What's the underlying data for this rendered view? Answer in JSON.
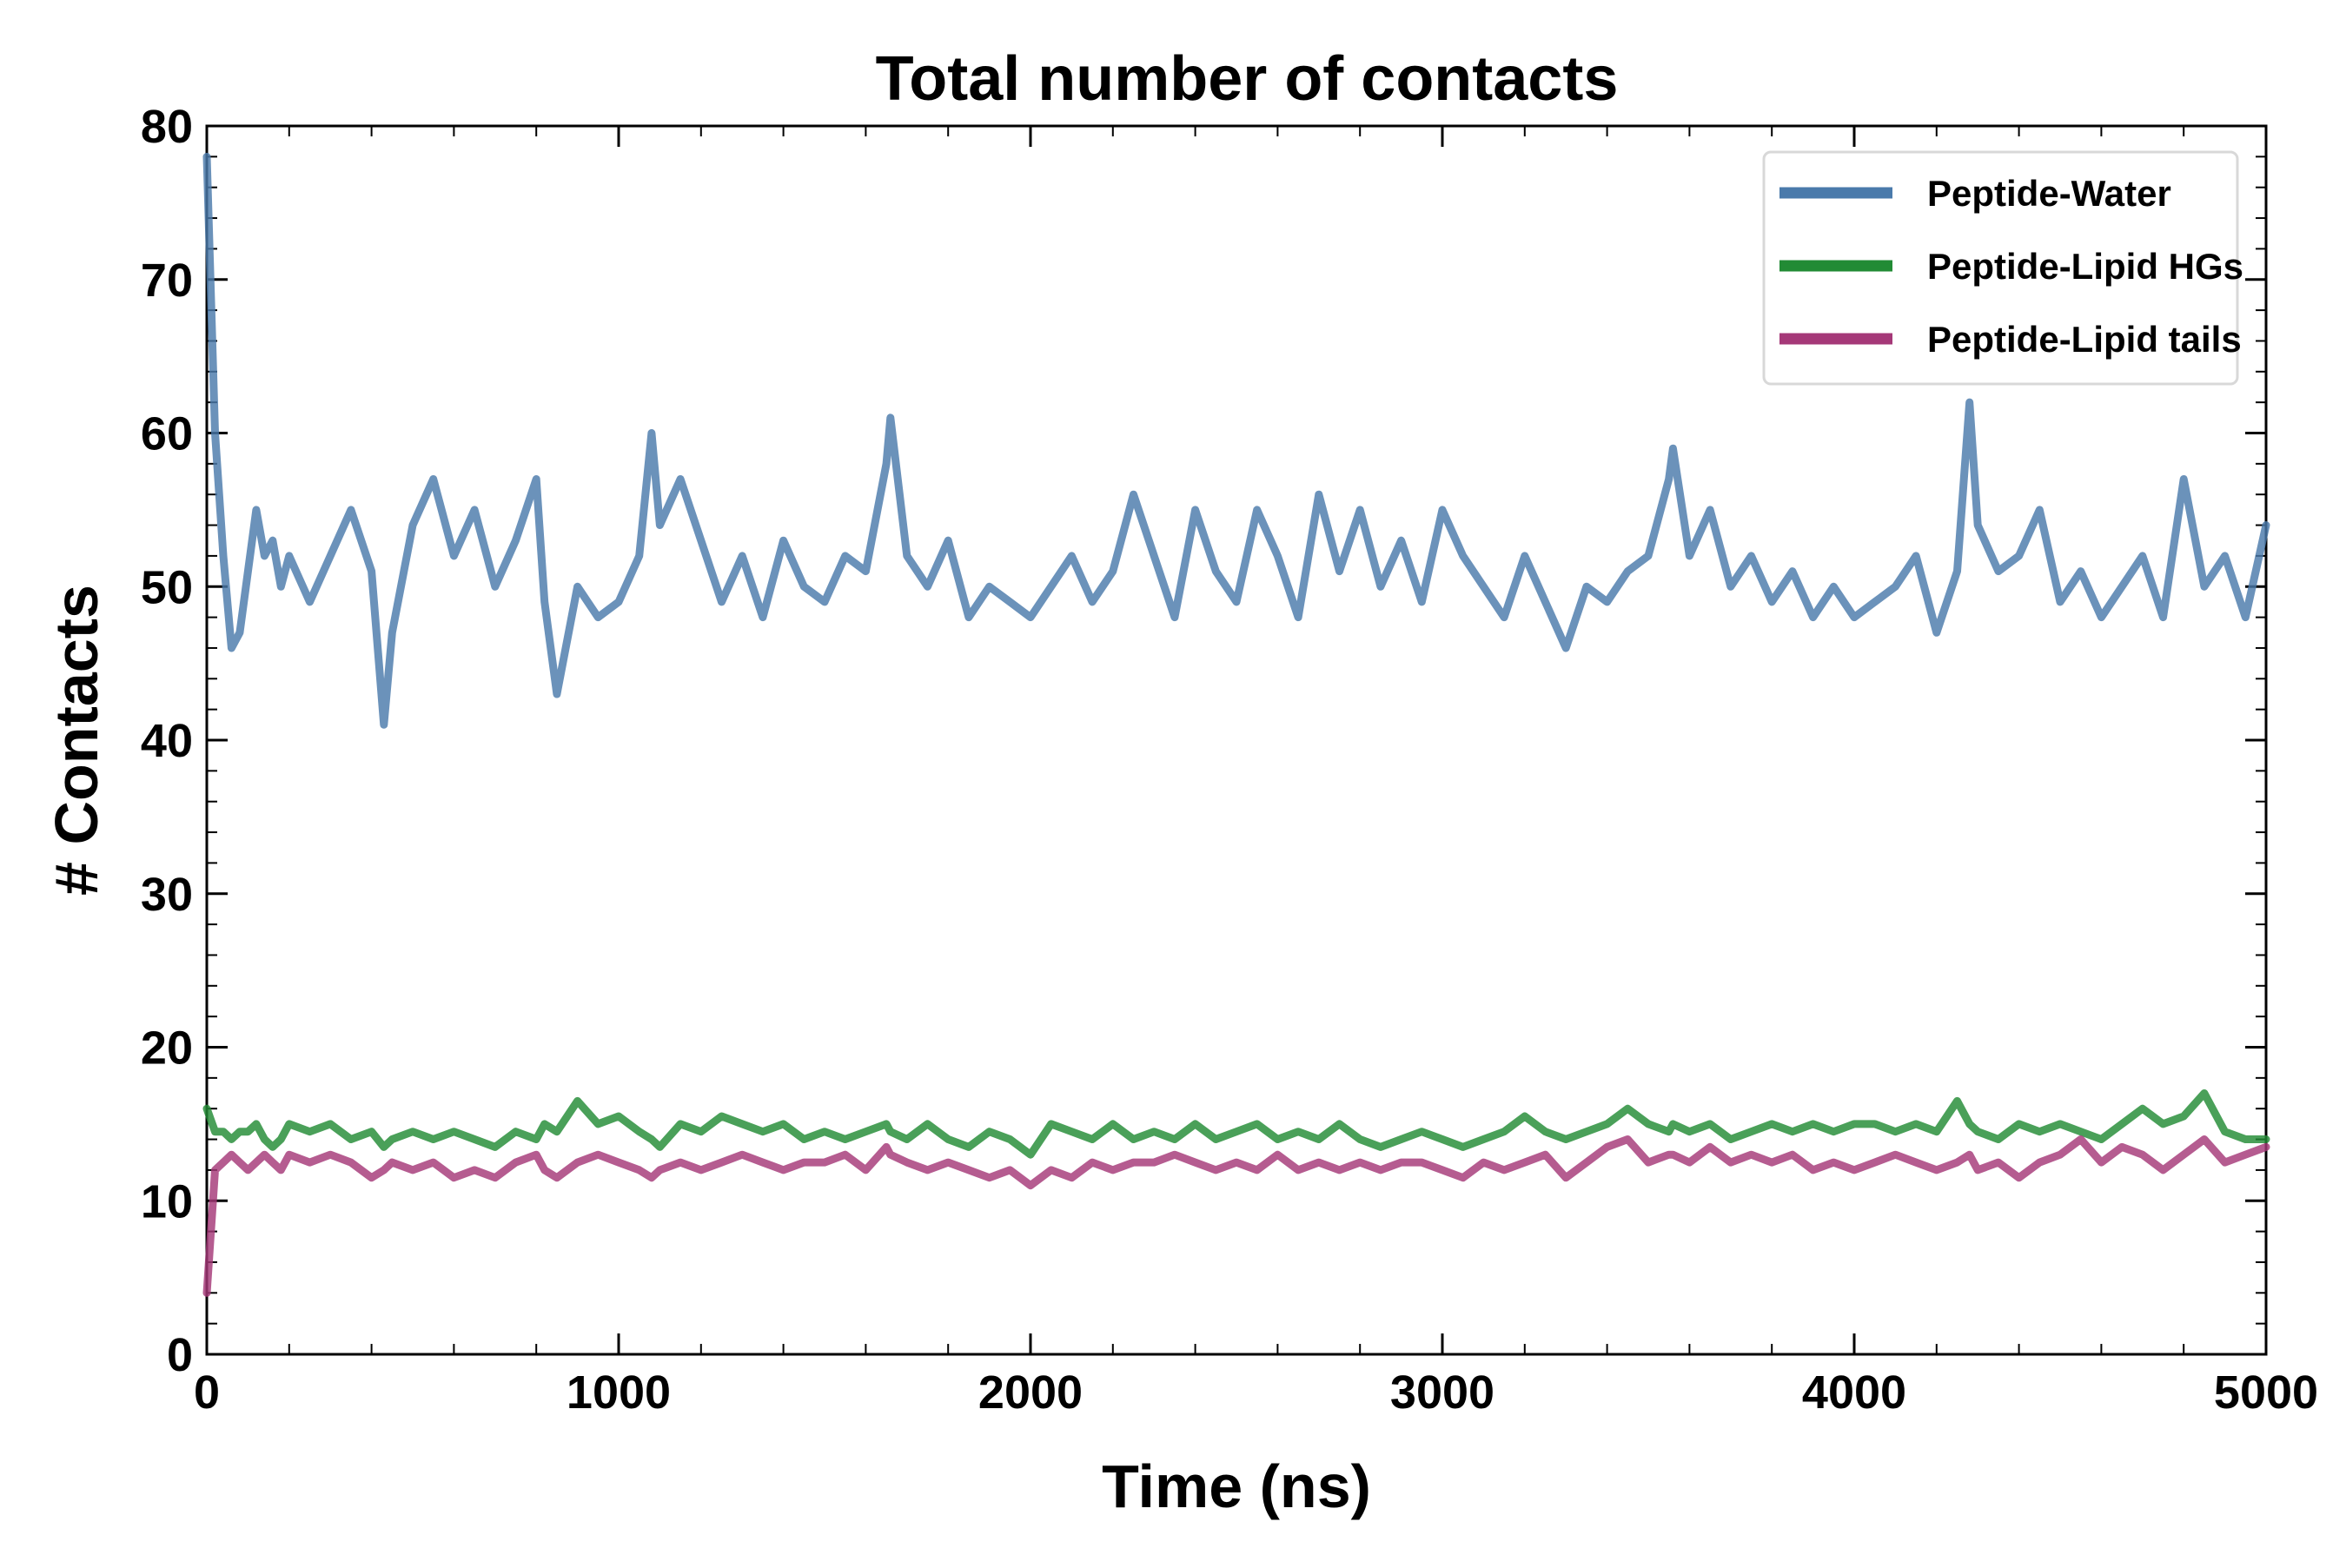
{
  "chart_data": {
    "type": "line",
    "title": "Total number of contacts",
    "xlabel": "Time (ns)",
    "ylabel": "# Contacts",
    "xlim": [
      0,
      5000
    ],
    "ylim": [
      0,
      80
    ],
    "xticks": [
      "0",
      "1000",
      "2000",
      "3000",
      "4000",
      "5000"
    ],
    "yticks": [
      "0",
      "10",
      "20",
      "30",
      "40",
      "50",
      "60",
      "70",
      "80"
    ],
    "legend_position": "top-right",
    "grid": false,
    "x": [
      0,
      20,
      40,
      60,
      80,
      100,
      120,
      140,
      160,
      180,
      200,
      250,
      300,
      350,
      400,
      430,
      450,
      500,
      550,
      600,
      650,
      700,
      750,
      800,
      820,
      850,
      900,
      950,
      1000,
      1050,
      1080,
      1100,
      1150,
      1200,
      1250,
      1300,
      1350,
      1400,
      1450,
      1500,
      1550,
      1600,
      1650,
      1660,
      1700,
      1750,
      1800,
      1850,
      1900,
      1950,
      2000,
      2050,
      2100,
      2150,
      2200,
      2250,
      2300,
      2350,
      2400,
      2450,
      2500,
      2550,
      2600,
      2650,
      2700,
      2750,
      2800,
      2850,
      2900,
      2950,
      3000,
      3050,
      3100,
      3150,
      3200,
      3250,
      3300,
      3350,
      3400,
      3450,
      3500,
      3550,
      3560,
      3600,
      3650,
      3700,
      3750,
      3800,
      3850,
      3900,
      3950,
      4000,
      4050,
      4100,
      4150,
      4200,
      4250,
      4280,
      4300,
      4350,
      4400,
      4450,
      4500,
      4550,
      4600,
      4650,
      4700,
      4750,
      4800,
      4850,
      4900,
      4950,
      5000
    ],
    "series": [
      {
        "name": "Peptide-Water",
        "color": "#4a7aab",
        "values": [
          78,
          60,
          52,
          46,
          47,
          51,
          55,
          52,
          53,
          50,
          52,
          49,
          52,
          55,
          51,
          41,
          47,
          54,
          57,
          52,
          55,
          50,
          53,
          57,
          49,
          43,
          50,
          48,
          49,
          52,
          60,
          54,
          57,
          53,
          49,
          52,
          48,
          53,
          50,
          49,
          52,
          51,
          58,
          61,
          52,
          50,
          53,
          48,
          50,
          49,
          48,
          50,
          52,
          49,
          51,
          56,
          52,
          48,
          55,
          51,
          49,
          55,
          52,
          48,
          56,
          51,
          55,
          50,
          53,
          49,
          55,
          52,
          50,
          48,
          52,
          49,
          46,
          50,
          49,
          51,
          52,
          57,
          59,
          52,
          55,
          50,
          52,
          49,
          51,
          48,
          50,
          48,
          49,
          50,
          52,
          47,
          51,
          62,
          54,
          51,
          52,
          55,
          49,
          51,
          48,
          50,
          52,
          48,
          57,
          50,
          52,
          48,
          54
        ]
      },
      {
        "name": "Peptide-Lipid HGs",
        "color": "#228b35",
        "values": [
          16,
          14.5,
          14.5,
          14,
          14.5,
          14.5,
          15,
          14,
          13.5,
          14,
          15,
          14.5,
          15,
          14,
          14.5,
          13.5,
          14,
          14.5,
          14,
          14.5,
          14,
          13.5,
          14.5,
          14,
          15,
          14.5,
          16.5,
          15,
          15.5,
          14.5,
          14,
          13.5,
          15,
          14.5,
          15.5,
          15,
          14.5,
          15,
          14,
          14.5,
          14,
          14.5,
          15,
          14.5,
          14,
          15,
          14,
          13.5,
          14.5,
          14,
          13,
          15,
          14.5,
          14,
          15,
          14,
          14.5,
          14,
          15,
          14,
          14.5,
          15,
          14,
          14.5,
          14,
          15,
          14,
          13.5,
          14,
          14.5,
          14,
          13.5,
          14,
          14.5,
          15.5,
          14.5,
          14,
          14.5,
          15,
          16,
          15,
          14.5,
          15,
          14.5,
          15,
          14,
          14.5,
          15,
          14.5,
          15,
          14.5,
          15,
          15,
          14.5,
          15,
          14.5,
          16.5,
          15,
          14.5,
          14,
          15,
          14.5,
          15,
          14.5,
          14,
          15,
          16,
          15,
          15.5,
          17,
          14.5,
          14,
          14
        ]
      },
      {
        "name": "Peptide-Lipid tails",
        "color": "#a53878",
        "values": [
          4,
          12,
          12.5,
          13,
          12.5,
          12,
          12.5,
          13,
          12.5,
          12,
          13,
          12.5,
          13,
          12.5,
          11.5,
          12,
          12.5,
          12,
          12.5,
          11.5,
          12,
          11.5,
          12.5,
          13,
          12,
          11.5,
          12.5,
          13,
          12.5,
          12,
          11.5,
          12,
          12.5,
          12,
          12.5,
          13,
          12.5,
          12,
          12.5,
          12.5,
          13,
          12,
          13.5,
          13,
          12.5,
          12,
          12.5,
          12,
          11.5,
          12,
          11,
          12,
          11.5,
          12.5,
          12,
          12.5,
          12.5,
          13,
          12.5,
          12,
          12.5,
          12,
          13,
          12,
          12.5,
          12,
          12.5,
          12,
          12.5,
          12.5,
          12,
          11.5,
          12.5,
          12,
          12.5,
          13,
          11.5,
          12.5,
          13.5,
          14,
          12.5,
          13,
          13,
          12.5,
          13.5,
          12.5,
          13,
          12.5,
          13,
          12,
          12.5,
          12,
          12.5,
          13,
          12.5,
          12,
          12.5,
          13,
          12,
          12.5,
          11.5,
          12.5,
          13,
          14,
          12.5,
          13.5,
          13,
          12,
          13,
          14,
          12.5,
          13,
          13.5
        ]
      }
    ]
  }
}
